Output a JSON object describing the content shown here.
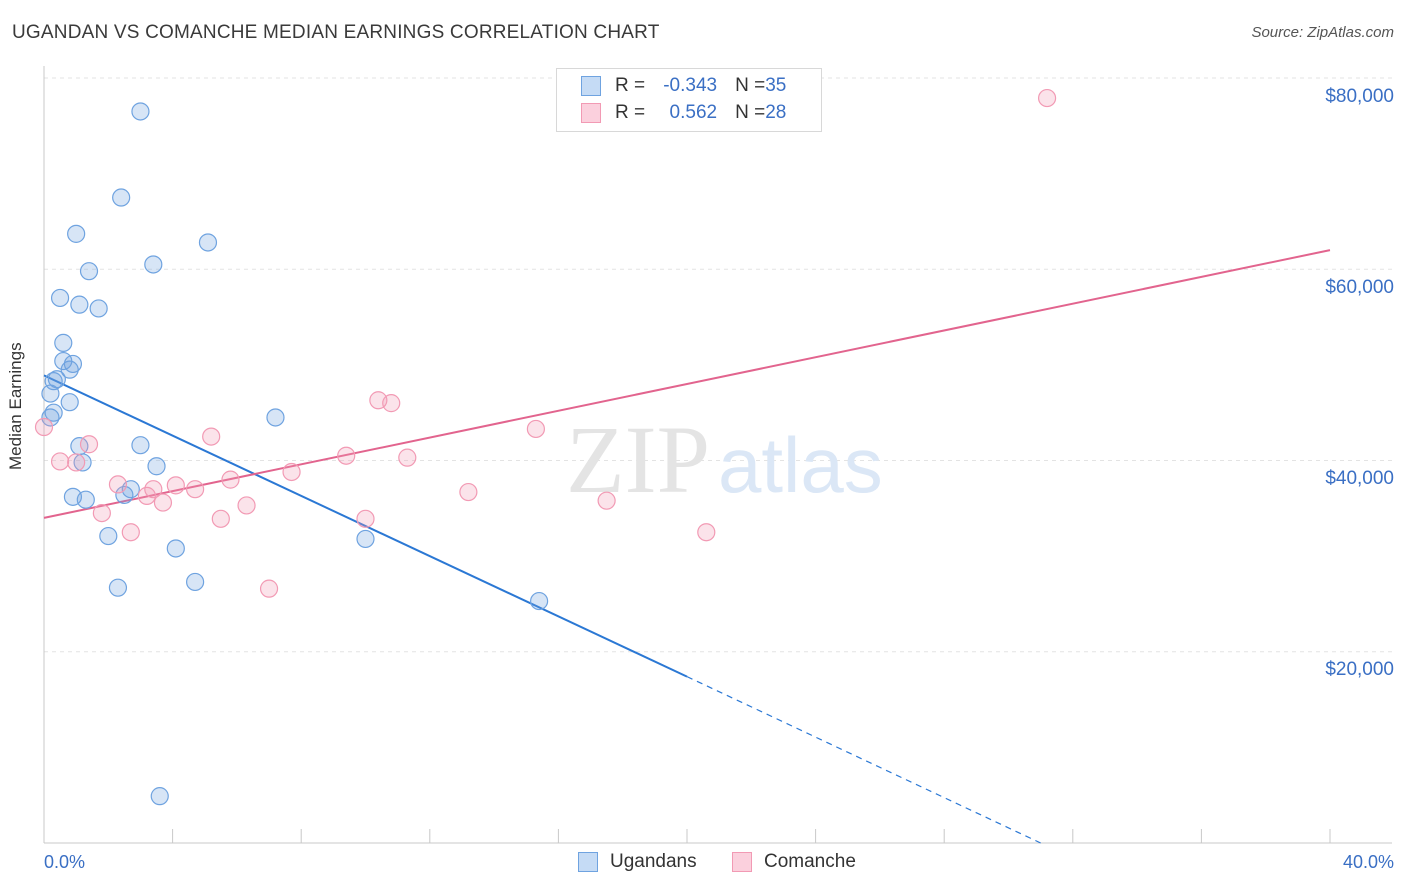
{
  "title": "UGANDAN VS COMANCHE MEDIAN EARNINGS CORRELATION CHART",
  "source": "Source: ZipAtlas.com",
  "watermark": {
    "zip": "ZIP",
    "atlas": "atlas"
  },
  "legend": {
    "rows": [
      {
        "r_label": "R = ",
        "r_value": "-0.343",
        "n_label": "N = ",
        "n_value": "35"
      },
      {
        "r_label": "R = ",
        "r_value": " 0.562",
        "n_label": "N = ",
        "n_value": "28"
      }
    ]
  },
  "colors": {
    "ugandans": "#6fa3e0",
    "comanche": "#f29ab4",
    "ug_line": "#2b78d4",
    "co_line": "#e2648e"
  },
  "chart_data": {
    "type": "scatter",
    "title": "UGANDAN VS COMANCHE MEDIAN EARNINGS CORRELATION CHART",
    "xlabel": "",
    "ylabel": "Median Earnings",
    "xlim": [
      0,
      40
    ],
    "ylim": [
      0,
      80000
    ],
    "x_tick_labels": [
      "0.0%",
      "40.0%"
    ],
    "y_ticks": [
      20000,
      40000,
      60000,
      80000
    ],
    "y_tick_labels": [
      "$20,000",
      "$40,000",
      "$60,000",
      "$80,000"
    ],
    "grid": true,
    "legend_position": "top-center",
    "series": [
      {
        "name": "Ugandans",
        "color": "#6fa3e0",
        "points": [
          [
            3.0,
            76500
          ],
          [
            2.4,
            67500
          ],
          [
            5.1,
            62800
          ],
          [
            1.0,
            63700
          ],
          [
            3.4,
            60500
          ],
          [
            1.4,
            59800
          ],
          [
            0.5,
            57000
          ],
          [
            1.1,
            56300
          ],
          [
            1.7,
            55900
          ],
          [
            0.6,
            52300
          ],
          [
            0.9,
            50100
          ],
          [
            0.6,
            50400
          ],
          [
            0.8,
            49500
          ],
          [
            0.4,
            48500
          ],
          [
            0.3,
            48300
          ],
          [
            0.2,
            47000
          ],
          [
            0.8,
            46100
          ],
          [
            0.3,
            45000
          ],
          [
            0.2,
            44500
          ],
          [
            7.2,
            44500
          ],
          [
            1.1,
            41500
          ],
          [
            3.0,
            41600
          ],
          [
            1.2,
            39800
          ],
          [
            3.5,
            39400
          ],
          [
            2.7,
            37000
          ],
          [
            2.5,
            36400
          ],
          [
            0.9,
            36200
          ],
          [
            1.3,
            35900
          ],
          [
            2.0,
            32100
          ],
          [
            4.1,
            30800
          ],
          [
            10.0,
            31800
          ],
          [
            2.3,
            26700
          ],
          [
            4.7,
            27300
          ],
          [
            15.4,
            25300
          ],
          [
            3.6,
            4900
          ]
        ]
      },
      {
        "name": "Comanche",
        "color": "#f29ab4",
        "points": [
          [
            31.2,
            77900
          ],
          [
            0.0,
            43500
          ],
          [
            1.4,
            41700
          ],
          [
            0.5,
            39900
          ],
          [
            1.0,
            39800
          ],
          [
            5.2,
            42500
          ],
          [
            10.4,
            46300
          ],
          [
            10.8,
            46000
          ],
          [
            15.3,
            43300
          ],
          [
            9.4,
            40500
          ],
          [
            11.3,
            40300
          ],
          [
            7.7,
            38800
          ],
          [
            5.8,
            38000
          ],
          [
            2.3,
            37500
          ],
          [
            4.1,
            37400
          ],
          [
            4.7,
            37000
          ],
          [
            3.4,
            37000
          ],
          [
            3.2,
            36300
          ],
          [
            13.2,
            36700
          ],
          [
            3.7,
            35600
          ],
          [
            6.3,
            35300
          ],
          [
            17.5,
            35800
          ],
          [
            1.8,
            34500
          ],
          [
            5.5,
            33900
          ],
          [
            10.0,
            33900
          ],
          [
            2.7,
            32500
          ],
          [
            20.6,
            32500
          ],
          [
            7.0,
            26600
          ]
        ]
      }
    ],
    "trendlines": [
      {
        "series": "Ugandans",
        "x": [
          0,
          20
        ],
        "y": [
          48900,
          17400
        ],
        "dashed_extension_x": [
          20,
          31.0
        ],
        "dashed_extension_y": [
          17400,
          0
        ]
      },
      {
        "series": "Comanche",
        "x": [
          0,
          40
        ],
        "y": [
          34000,
          62000
        ]
      }
    ]
  },
  "bottom_legend": {
    "ugandans": "Ugandans",
    "comanche": "Comanche"
  }
}
